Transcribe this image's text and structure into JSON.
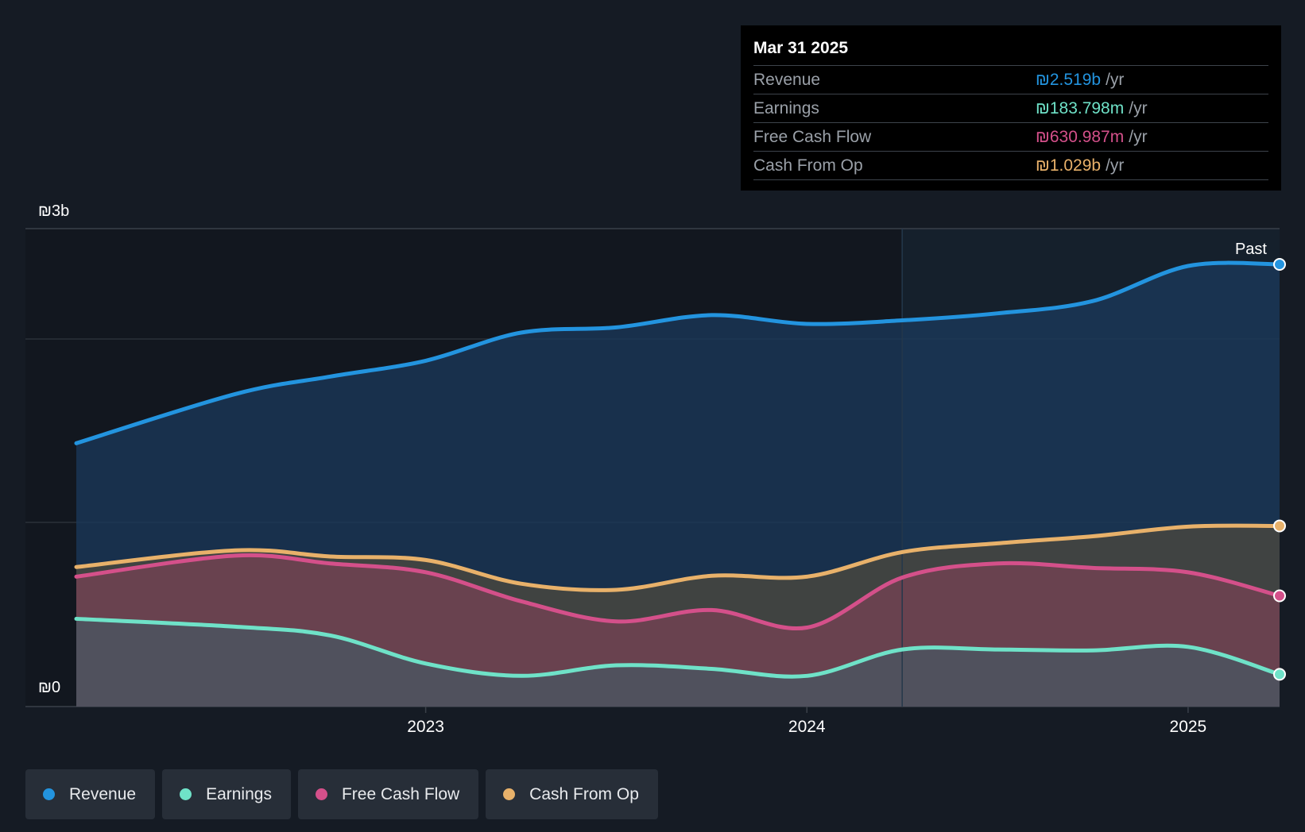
{
  "chart_data": {
    "type": "line",
    "currency": "₪",
    "x_unit": "year (decimal)",
    "x": [
      2022.25,
      2022.5,
      2022.75,
      2023.0,
      2023.25,
      2023.5,
      2023.75,
      2024.0,
      2024.25,
      2024.5,
      2024.75,
      2025.0,
      2025.24
    ],
    "series": [
      {
        "name": "Revenue",
        "key": "revenue",
        "color": "#2394df",
        "unit": "b",
        "values": [
          1.5,
          1.78,
          1.88,
          1.97,
          2.13,
          2.16,
          2.23,
          2.18,
          2.2,
          2.24,
          2.31,
          2.51,
          2.519
        ]
      },
      {
        "name": "Earnings",
        "key": "earnings",
        "color": "#6fe2c8",
        "unit": "m",
        "values": [
          500,
          455,
          405,
          245,
          175,
          235,
          215,
          175,
          325,
          325,
          320,
          340,
          183.798
        ]
      },
      {
        "name": "Free Cash Flow",
        "key": "fcf",
        "color": "#d4508a",
        "unit": "m",
        "values": [
          740,
          860,
          815,
          765,
          600,
          485,
          550,
          450,
          735,
          815,
          790,
          765,
          630.987
        ]
      },
      {
        "name": "Cash From Op",
        "key": "cfo",
        "color": "#e8b16a",
        "unit": "m",
        "values": [
          795,
          890,
          855,
          835,
          700,
          665,
          745,
          740,
          880,
          930,
          970,
          1025,
          1029
        ]
      }
    ],
    "y_labels": {
      "top": "₪3b",
      "bottom": "₪0"
    },
    "ylim": [
      0,
      2.6
    ],
    "xlim": [
      2021.95,
      2025.24
    ],
    "x_ticks": [
      {
        "value": 2023.0,
        "label": "2023"
      },
      {
        "value": 2024.0,
        "label": "2024"
      },
      {
        "value": 2025.0,
        "label": "2025"
      }
    ],
    "past_divider_x": 2024.25,
    "past_label": "Past"
  },
  "tooltip": {
    "date": "Mar 31 2025",
    "rows": [
      {
        "label": "Revenue",
        "value": "₪2.519b",
        "unit": "/yr",
        "color": "#2394df"
      },
      {
        "label": "Earnings",
        "value": "₪183.798m",
        "unit": "/yr",
        "color": "#6fe2c8"
      },
      {
        "label": "Free Cash Flow",
        "value": "₪630.987m",
        "unit": "/yr",
        "color": "#d4508a"
      },
      {
        "label": "Cash From Op",
        "value": "₪1.029b",
        "unit": "/yr",
        "color": "#e8b16a"
      }
    ]
  },
  "legend": [
    {
      "label": "Revenue",
      "color": "#2394df"
    },
    {
      "label": "Earnings",
      "color": "#6fe2c8"
    },
    {
      "label": "Free Cash Flow",
      "color": "#d4508a"
    },
    {
      "label": "Cash From Op",
      "color": "#e8b16a"
    }
  ]
}
